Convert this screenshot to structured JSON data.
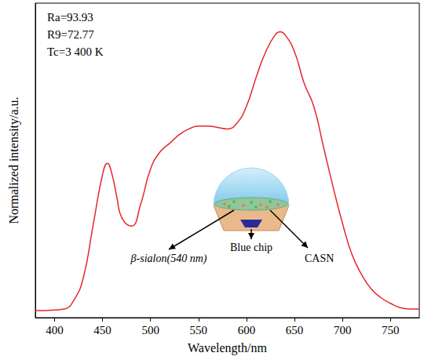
{
  "chart_data": {
    "type": "line",
    "x_label": "Wavelength/nm",
    "y_label": "Normalized intensity/a.u.",
    "x": [
      380,
      390,
      400,
      410,
      420,
      430,
      440,
      450,
      455,
      460,
      465,
      470,
      480,
      490,
      500,
      510,
      520,
      530,
      540,
      550,
      560,
      570,
      580,
      590,
      600,
      610,
      620,
      630,
      635,
      640,
      650,
      660,
      670,
      680,
      690,
      700,
      710,
      720,
      730,
      740,
      750,
      760,
      770,
      780
    ],
    "values": [
      0.025,
      0.025,
      0.027,
      0.03,
      0.06,
      0.14,
      0.32,
      0.5,
      0.54,
      0.5,
      0.42,
      0.35,
      0.32,
      0.4,
      0.52,
      0.58,
      0.61,
      0.64,
      0.66,
      0.67,
      0.67,
      0.665,
      0.66,
      0.68,
      0.74,
      0.84,
      0.93,
      0.99,
      1.0,
      0.99,
      0.93,
      0.82,
      0.74,
      0.6,
      0.46,
      0.33,
      0.22,
      0.15,
      0.1,
      0.07,
      0.05,
      0.035,
      0.03,
      0.03
    ],
    "color": "#e8262a",
    "xlim": [
      380,
      780
    ],
    "xticks": [
      400,
      450,
      500,
      550,
      600,
      650,
      700,
      750
    ],
    "ylim": [
      0,
      1.1
    ],
    "tick_labels": "x",
    "grid": false,
    "annotations": [
      "Ra=93.93",
      "R9=72.77",
      "Tc=3 400 K"
    ],
    "inset_labels": {
      "left": "β-sialon(540 nm)",
      "middle": "Blue chip",
      "right": "CASN"
    }
  }
}
